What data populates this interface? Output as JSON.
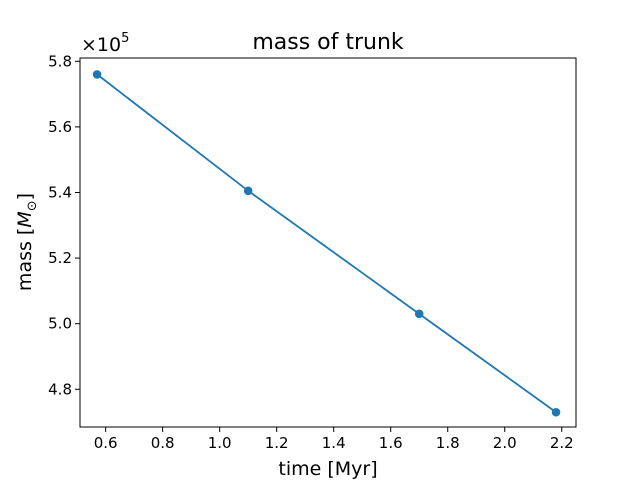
{
  "chart_data": {
    "type": "line",
    "title": "mass of trunk",
    "xlabel": "time [Myr]",
    "ylabel_text": "mass [",
    "ylabel_symbol": "M",
    "ylabel_subscript": "⊙",
    "ylabel_close": "]",
    "y_offset_prefix": "×10",
    "y_offset_exponent": "5",
    "xlim": [
      0.51,
      2.25
    ],
    "ylim": [
      4.685,
      5.81
    ],
    "xticks": [
      0.6,
      0.8,
      1.0,
      1.2,
      1.4,
      1.6,
      1.8,
      2.0,
      2.2
    ],
    "xtick_labels": [
      "0.6",
      "0.8",
      "1.0",
      "1.2",
      "1.4",
      "1.6",
      "1.8",
      "2.0",
      "2.2"
    ],
    "yticks": [
      4.8,
      5.0,
      5.2,
      5.4,
      5.6,
      5.8
    ],
    "ytick_labels": [
      "4.8",
      "5.0",
      "5.2",
      "5.4",
      "5.6",
      "5.8"
    ],
    "grid": false,
    "series": [
      {
        "x": [
          0.57,
          1.1,
          1.7,
          2.18
        ],
        "y": [
          5.76,
          5.405,
          5.03,
          4.73
        ],
        "color": "#1f77b4",
        "marker": "circle"
      }
    ]
  }
}
